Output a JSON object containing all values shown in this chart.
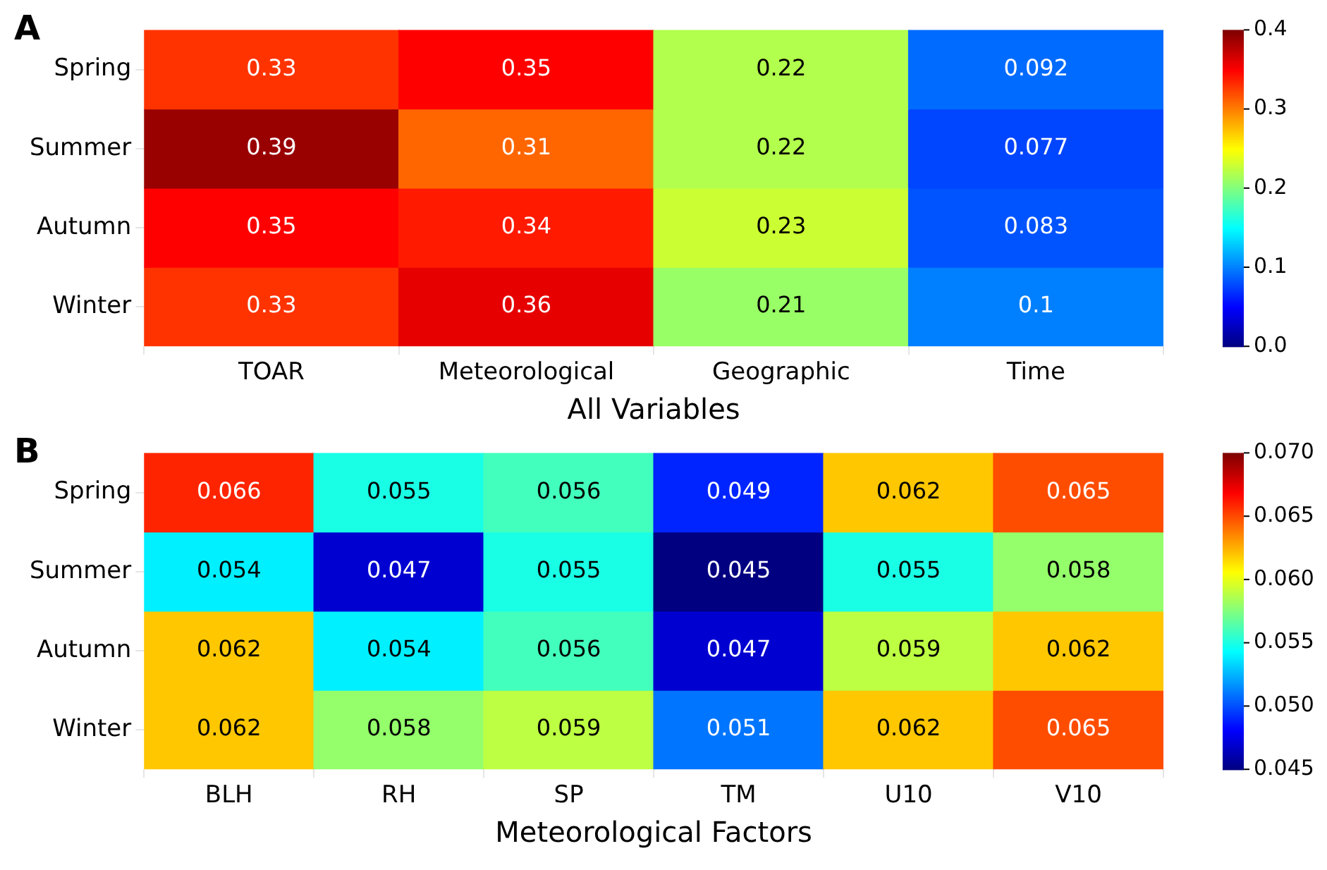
{
  "chart_data": [
    {
      "type": "heatmap",
      "title": "A",
      "xlabel": "All Variables",
      "categories": [
        "TOAR",
        "Meteorological",
        "Geographic",
        "Time"
      ],
      "y_categories": [
        "Spring",
        "Summer",
        "Autumn",
        "Winter"
      ],
      "cells": [
        [
          0.33,
          0.35,
          0.22,
          0.092
        ],
        [
          0.39,
          0.31,
          0.22,
          0.077
        ],
        [
          0.35,
          0.34,
          0.23,
          0.083
        ],
        [
          0.33,
          0.36,
          0.21,
          0.1
        ]
      ],
      "clim": [
        0,
        0.4
      ],
      "cticks": [
        {
          "value": 0,
          "label": "0.0"
        },
        0.1,
        0.2,
        0.3,
        0.4
      ],
      "data_labels": true
    },
    {
      "type": "heatmap",
      "title": "B",
      "xlabel": "Meteorological Factors",
      "categories": [
        "BLH",
        "RH",
        "SP",
        "TM",
        "U10",
        "V10"
      ],
      "y_categories": [
        "Spring",
        "Summer",
        "Autumn",
        "Winter"
      ],
      "cells": [
        [
          0.066,
          0.055,
          0.056,
          0.049,
          0.062,
          0.065
        ],
        [
          0.054,
          0.047,
          0.055,
          0.045,
          0.055,
          0.058
        ],
        [
          0.062,
          0.054,
          0.056,
          0.047,
          0.059,
          0.062
        ],
        [
          0.062,
          0.058,
          0.059,
          0.051,
          0.062,
          0.065
        ]
      ],
      "clim": [
        0.045,
        0.07
      ],
      "cticks": [
        0.045,
        {
          "value": 0.05,
          "label": "0.050"
        },
        0.055,
        {
          "value": 0.06,
          "label": "0.060"
        },
        0.065,
        {
          "value": 0.07,
          "label": "0.070"
        }
      ],
      "data_labels": true
    }
  ]
}
